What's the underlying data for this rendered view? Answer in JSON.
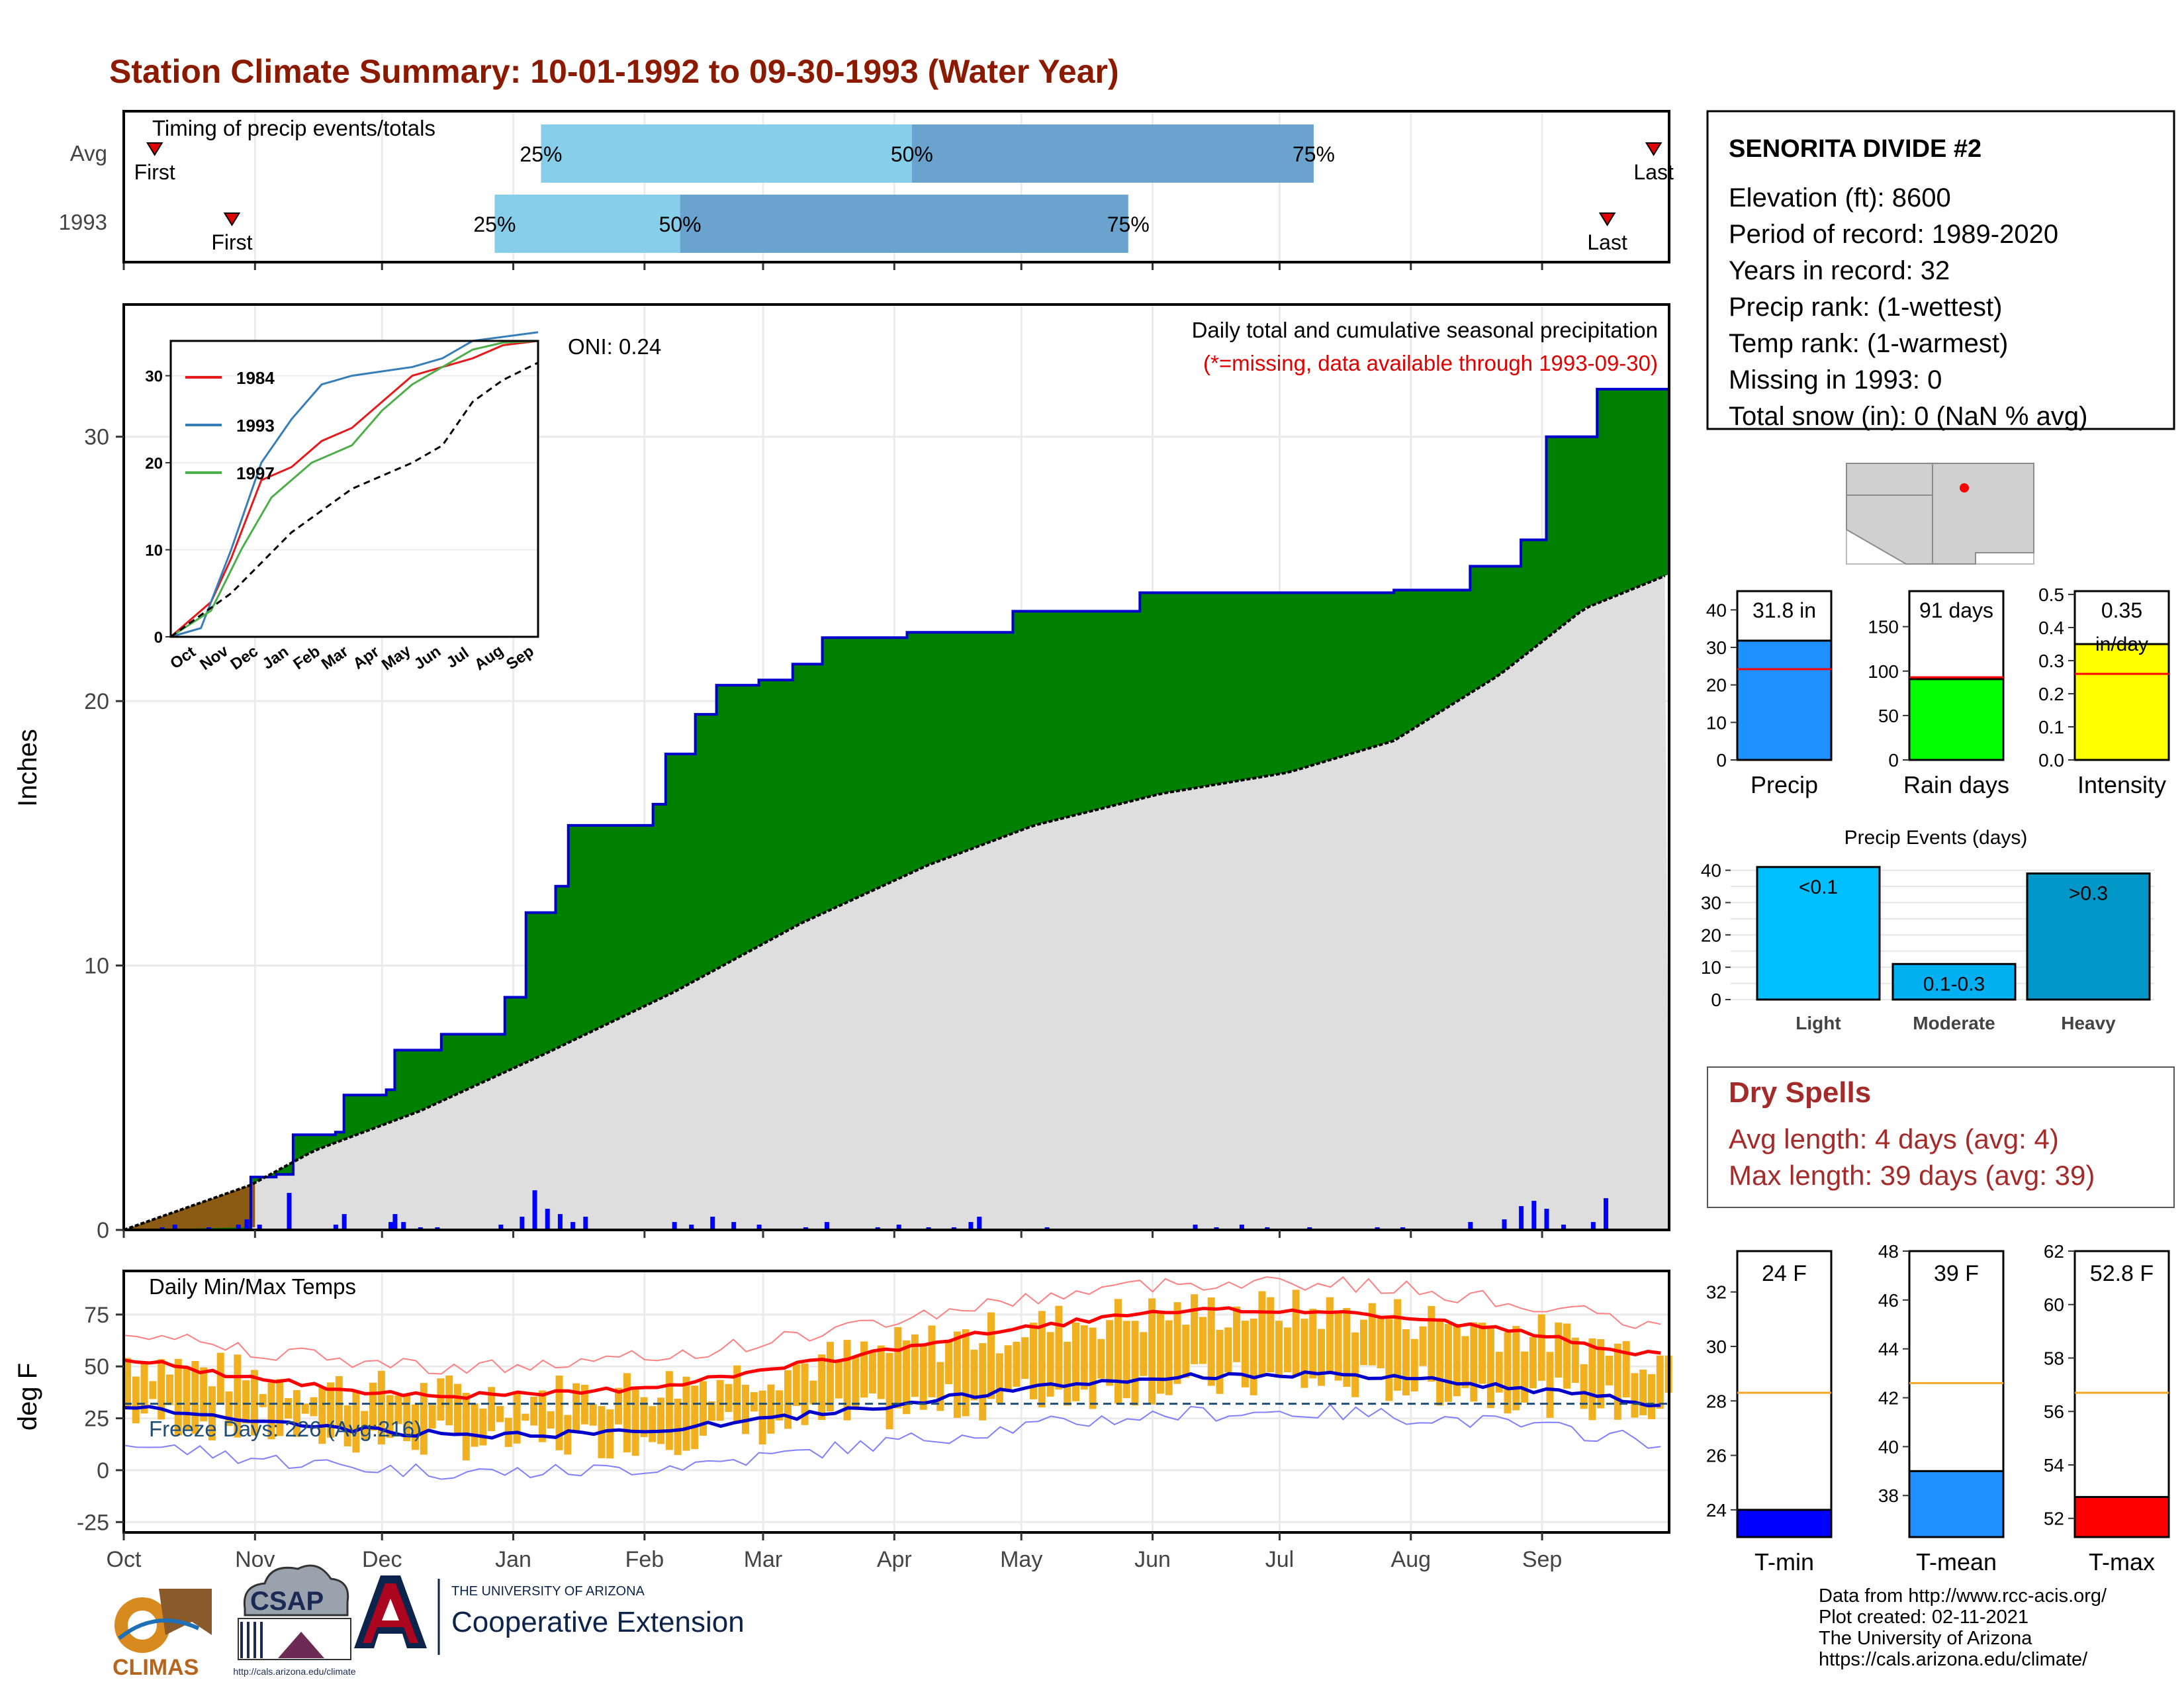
{
  "title": "Station Climate Summary: 10-01-1992 to 09-30-1993 (Water Year)",
  "colors": {
    "title": "#8b1a00",
    "precip_area": "#008000",
    "avg_precip_area": "#dedede",
    "precip_line": "#0000cc",
    "daily_precip_bar": "#0000ff",
    "early_area": "#8b5a14",
    "temp_bar": "#f0b020",
    "tmax_line": "#ff0000",
    "tmin_line": "#0000cc",
    "freeze_line": "#1f4e79",
    "timing_light": "#87ceeb",
    "timing_dark": "#6aa3cd",
    "marker": "#e00000",
    "dry_spell_text": "#a52a2a",
    "precip_bar": "#1e90ff",
    "rain_days_bar": "#00ff00",
    "intensity_bar": "#ffff00",
    "avg_line": "#ff0000",
    "temp_avg_line": "#f5a623",
    "event_light": "#00bfff",
    "event_moderate": "#00b0f0",
    "event_heavy": "#0096c7",
    "tmin_bar": "#0000ff",
    "tmean_bar": "#1e90ff",
    "tmax_bar": "#ff0000"
  },
  "timing": {
    "label": "Timing of precip events/totals",
    "rows": [
      {
        "name": "Avg",
        "first_label": "First",
        "last_label": "Last",
        "p25": "25%",
        "p50": "50%",
        "p75": "75%",
        "first": 0.02,
        "q25": 0.27,
        "q50": 0.51,
        "q75": 0.77,
        "last": 0.99
      },
      {
        "name": "1993",
        "first_label": "First",
        "last_label": "Last",
        "p25": "25%",
        "p50": "50%",
        "p75": "75%",
        "first": 0.07,
        "q25": 0.24,
        "q50": 0.36,
        "q75": 0.65,
        "last": 0.96
      }
    ]
  },
  "precip_panel": {
    "ylabel": "Inches",
    "oni": "ONI: 0.24",
    "header": "Daily total and cumulative seasonal precipitation",
    "note": "(*=missing, data available through 1993-09-30)"
  },
  "inset": {
    "legend": [
      "1984",
      "1993",
      "1997"
    ],
    "legend_colors": [
      "#e41a1c",
      "#377eb8",
      "#4daf4a"
    ],
    "yticks": [
      "0",
      "10",
      "20",
      "30"
    ],
    "xticks": [
      "Oct",
      "Nov",
      "Dec",
      "Jan",
      "Feb",
      "Mar",
      "Apr",
      "May",
      "Jun",
      "Jul",
      "Aug",
      "Sep"
    ]
  },
  "temp_panel": {
    "label": "Daily Min/Max Temps",
    "ylabel": "deg F",
    "freeze": "Freeze Days: 226 (Avg:216)",
    "yticks": [
      "75",
      "50",
      "25",
      "0",
      "-25"
    ]
  },
  "months": [
    "Oct",
    "Nov",
    "Dec",
    "Jan",
    "Feb",
    "Mar",
    "Apr",
    "May",
    "Jun",
    "Jul",
    "Aug",
    "Sep"
  ],
  "station": {
    "name": "SENORITA DIVIDE #2",
    "lines": [
      "Elevation (ft): 8600",
      "Period of record: 1989-2020",
      "Years in record: 32",
      "Precip rank:  (1-wettest)",
      "Temp rank:  (1-warmest)",
      "Missing in 1993: 0",
      "Total snow (in): 0 (NaN % avg)"
    ]
  },
  "summary_bars": [
    {
      "label": "Precip",
      "value_label": "31.8 in",
      "value": 31.8,
      "avg": 24.2,
      "ymax": 45,
      "ticks": [
        "0",
        "10",
        "20",
        "30",
        "40"
      ],
      "tick_vals": [
        0,
        10,
        20,
        30,
        40
      ],
      "color": "#1e90ff"
    },
    {
      "label": "Rain days",
      "value_label": "91 days",
      "value": 91,
      "avg": 93,
      "ymax": 190,
      "ticks": [
        "0",
        "50",
        "100",
        "150"
      ],
      "tick_vals": [
        0,
        50,
        100,
        150
      ],
      "color": "#00ff00"
    },
    {
      "label": "Intensity",
      "value_label": "0.35",
      "value_label2": "in/day",
      "value": 0.35,
      "avg": 0.26,
      "ymax": 0.51,
      "ticks": [
        "0.0",
        "0.1",
        "0.2",
        "0.3",
        "0.4",
        "0.5"
      ],
      "tick_vals": [
        0,
        0.1,
        0.2,
        0.3,
        0.4,
        0.5
      ],
      "color": "#ffff00"
    }
  ],
  "precip_events": {
    "title": "Precip Events (days)",
    "ticks": [
      "0",
      "10",
      "20",
      "30",
      "40"
    ],
    "bars": [
      {
        "label": "Light",
        "text": "<0.1",
        "value": 41
      },
      {
        "label": "Moderate",
        "text": "0.1-0.3",
        "value": 11
      },
      {
        "label": "Heavy",
        "text": ">0.3",
        "value": 39
      }
    ]
  },
  "dry_spells": {
    "title": "Dry Spells",
    "avg": "Avg length: 4 days (avg: 4)",
    "max": "Max length: 39 days (avg: 39)"
  },
  "temp_bars": [
    {
      "label": "T-min",
      "value_label": "24 F",
      "value": 24.0,
      "avg": 28.3,
      "ymin": 23,
      "ymax": 33.5,
      "ticks": [
        "24",
        "26",
        "28",
        "30",
        "32"
      ],
      "tick_vals": [
        24,
        26,
        28,
        30,
        32
      ],
      "color": "#0000ff"
    },
    {
      "label": "T-mean",
      "value_label": "39 F",
      "value": 39.0,
      "avg": 42.6,
      "ymin": 36.3,
      "ymax": 48,
      "ticks": [
        "38",
        "40",
        "42",
        "44",
        "46",
        "48"
      ],
      "tick_vals": [
        38,
        40,
        42,
        44,
        46,
        48
      ],
      "color": "#1e90ff"
    },
    {
      "label": "T-max",
      "value_label": "52.8 F",
      "value": 52.8,
      "avg": 56.7,
      "ymin": 51.3,
      "ymax": 62,
      "ticks": [
        "52",
        "54",
        "56",
        "58",
        "60",
        "62"
      ],
      "tick_vals": [
        52,
        54,
        56,
        58,
        60,
        62
      ],
      "color": "#ff0000"
    }
  ],
  "footer": {
    "lines": [
      "Data from http://www.rcc-acis.org/",
      "Plot created: 02-11-2021",
      "The University of Arizona",
      "https://cals.arizona.edu/climate/"
    ],
    "climas": "CLIMAS",
    "csap": "CSAP",
    "csap_url": "http://cals.arizona.edu/climate",
    "ua_small": "THE UNIVERSITY OF ARIZONA",
    "ua_big": "Cooperative Extension"
  },
  "chart_data": {
    "type": "area",
    "title": "Daily total and cumulative seasonal precipitation",
    "xlabel": "",
    "ylabel": "Inches",
    "ylim": [
      0,
      35
    ],
    "months": [
      "Oct",
      "Nov",
      "Dec",
      "Jan",
      "Feb",
      "Mar",
      "Apr",
      "May",
      "Jun",
      "Jul",
      "Aug",
      "Sep"
    ],
    "series": [
      {
        "name": "1993",
        "points": [
          [
            0,
            0
          ],
          [
            30,
            2
          ],
          [
            36,
            2.1
          ],
          [
            40,
            3.6
          ],
          [
            50,
            3.7
          ],
          [
            52,
            5.1
          ],
          [
            62,
            5.3
          ],
          [
            64,
            6.8
          ],
          [
            75,
            7.4
          ],
          [
            90,
            8.8
          ],
          [
            95,
            12
          ],
          [
            102,
            13
          ],
          [
            105,
            15.3
          ],
          [
            125,
            16.1
          ],
          [
            128,
            18
          ],
          [
            135,
            19.5
          ],
          [
            140,
            20.6
          ],
          [
            150,
            20.8
          ],
          [
            158,
            21.4
          ],
          [
            165,
            22.4
          ],
          [
            185,
            22.6
          ],
          [
            210,
            23.4
          ],
          [
            240,
            24.1
          ],
          [
            270,
            24.1
          ],
          [
            300,
            24.2
          ],
          [
            318,
            25.1
          ],
          [
            330,
            26.1
          ],
          [
            336,
            30
          ],
          [
            348,
            31.8
          ],
          [
            365,
            31.8
          ]
        ]
      },
      {
        "name": "Avg",
        "points": [
          [
            0,
            0
          ],
          [
            30,
            1.7
          ],
          [
            45,
            3
          ],
          [
            70,
            4.5
          ],
          [
            100,
            6.7
          ],
          [
            130,
            9
          ],
          [
            160,
            11.6
          ],
          [
            190,
            13.8
          ],
          [
            215,
            15.3
          ],
          [
            245,
            16.5
          ],
          [
            275,
            17.3
          ],
          [
            300,
            18.5
          ],
          [
            325,
            21
          ],
          [
            345,
            23.5
          ],
          [
            365,
            24.8
          ]
        ]
      }
    ],
    "daily_precip": [
      [
        9,
        0.1
      ],
      [
        12,
        0.2
      ],
      [
        20,
        0.1
      ],
      [
        27,
        0.2
      ],
      [
        29,
        0.4
      ],
      [
        32,
        0.2
      ],
      [
        39,
        1.4
      ],
      [
        50,
        0.2
      ],
      [
        52,
        0.6
      ],
      [
        63,
        0.3
      ],
      [
        64,
        0.6
      ],
      [
        66,
        0.3
      ],
      [
        70,
        0.1
      ],
      [
        74,
        0.1
      ],
      [
        89,
        0.2
      ],
      [
        94,
        0.5
      ],
      [
        97,
        1.5
      ],
      [
        100,
        0.8
      ],
      [
        103,
        0.6
      ],
      [
        106,
        0.3
      ],
      [
        109,
        0.5
      ],
      [
        130,
        0.3
      ],
      [
        134,
        0.2
      ],
      [
        139,
        0.5
      ],
      [
        144,
        0.3
      ],
      [
        150,
        0.2
      ],
      [
        161,
        0.1
      ],
      [
        166,
        0.3
      ],
      [
        178,
        0.1
      ],
      [
        183,
        0.2
      ],
      [
        190,
        0.1
      ],
      [
        196,
        0.1
      ],
      [
        200,
        0.3
      ],
      [
        202,
        0.5
      ],
      [
        218,
        0.1
      ],
      [
        253,
        0.2
      ],
      [
        258,
        0.1
      ],
      [
        264,
        0.2
      ],
      [
        270,
        0.1
      ],
      [
        280,
        0.1
      ],
      [
        296,
        0.1
      ],
      [
        302,
        0.1
      ],
      [
        318,
        0.3
      ],
      [
        326,
        0.4
      ],
      [
        330,
        0.9
      ],
      [
        333,
        1.1
      ],
      [
        336,
        0.8
      ],
      [
        340,
        0.2
      ],
      [
        347,
        0.3
      ],
      [
        350,
        1.2
      ]
    ]
  }
}
